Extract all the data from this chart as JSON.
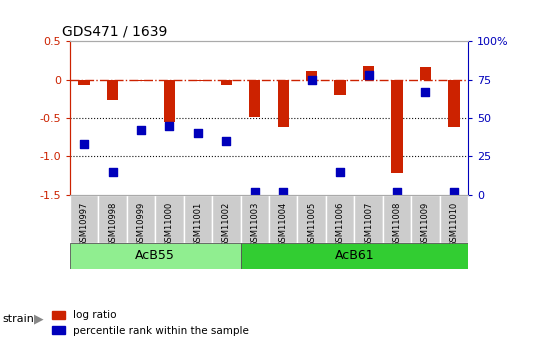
{
  "title": "GDS471 / 1639",
  "samples": [
    "GSM10997",
    "GSM10998",
    "GSM10999",
    "GSM11000",
    "GSM11001",
    "GSM11002",
    "GSM11003",
    "GSM11004",
    "GSM11005",
    "GSM11006",
    "GSM11007",
    "GSM11008",
    "GSM11009",
    "GSM11010"
  ],
  "log_ratio": [
    -0.07,
    -0.27,
    -0.02,
    -0.55,
    -0.02,
    -0.07,
    -0.48,
    -0.62,
    0.12,
    -0.2,
    0.18,
    -1.22,
    0.16,
    -0.62
  ],
  "percentile_rank": [
    33,
    15,
    42,
    45,
    40,
    35,
    2,
    2,
    75,
    15,
    78,
    2,
    67,
    2
  ],
  "ylim_left": [
    -1.5,
    0.5
  ],
  "ylim_right": [
    0,
    100
  ],
  "left_yticks": [
    0.5,
    0,
    -0.5,
    -1.0,
    -1.5
  ],
  "right_yticks": [
    100,
    75,
    50,
    25,
    0
  ],
  "right_ytick_labels": [
    "100%",
    "75",
    "50",
    "25",
    "0"
  ],
  "strain_groups": [
    {
      "label": "AcB55",
      "start": 0,
      "end": 5,
      "color": "#90EE90"
    },
    {
      "label": "AcB61",
      "start": 6,
      "end": 13,
      "color": "#32CD32"
    }
  ],
  "bar_color": "#CC2200",
  "point_color": "#0000BB",
  "ref_line_color": "#CC2200",
  "ref_line_style": "dashdot",
  "dot_line_color": "#111111",
  "dot_line_style": "dotted",
  "background_color": "#FFFFFF",
  "plot_area_color": "#FFFFFF",
  "tick_label_bg": "#CCCCCC",
  "left_axis_color": "#CC2200",
  "right_axis_color": "#0000BB",
  "bar_width": 0.4,
  "point_size": 28
}
